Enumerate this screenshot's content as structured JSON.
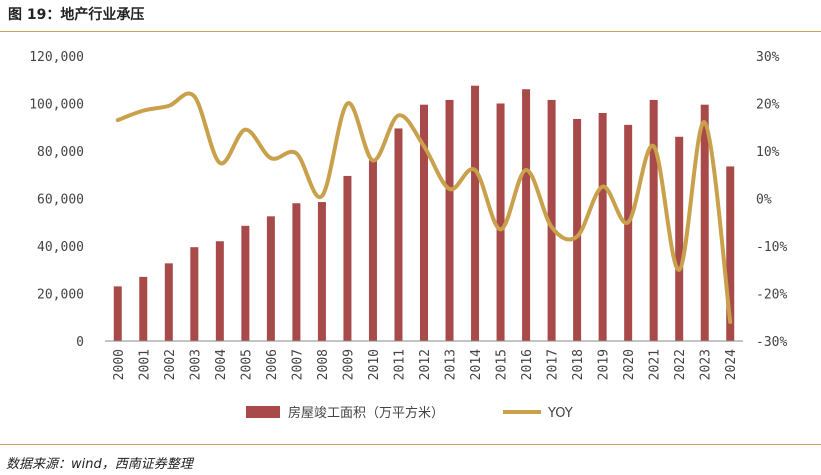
{
  "header": {
    "title": "图 19：地产行业承压"
  },
  "footer": {
    "source": "数据来源：wind，西南证券整理"
  },
  "chart_data": {
    "type": "bar+line",
    "categories": [
      "2000",
      "2001",
      "2002",
      "2003",
      "2004",
      "2005",
      "2006",
      "2007",
      "2008",
      "2009",
      "2010",
      "2011",
      "2012",
      "2013",
      "2014",
      "2015",
      "2016",
      "2017",
      "2018",
      "2019",
      "2020",
      "2021",
      "2022",
      "2023",
      "2024"
    ],
    "series": [
      {
        "name": "房屋竣工面积（万平方米）",
        "type": "bar",
        "axis": "left",
        "color": "#a94a4a",
        "values": [
          23000,
          27000,
          32700,
          39500,
          42000,
          48500,
          52500,
          58000,
          58500,
          69500,
          76000,
          89500,
          99500,
          101500,
          107500,
          100000,
          106000,
          101500,
          93500,
          96000,
          91000,
          101500,
          86000,
          99500,
          73500
        ]
      },
      {
        "name": "YOY",
        "type": "line",
        "axis": "right",
        "color": "#c9a04c",
        "values": [
          16.5,
          18.5,
          19.5,
          21.5,
          7.5,
          14.5,
          8.5,
          9.5,
          0.5,
          20,
          8,
          17.5,
          11,
          2,
          6,
          -6.5,
          6,
          -6,
          -8,
          2.5,
          -5,
          11,
          -15,
          16,
          -26
        ]
      }
    ],
    "left_axis": {
      "min": 0,
      "max": 120000,
      "ticks": [
        "0",
        "20,000",
        "40,000",
        "60,000",
        "80,000",
        "100,000",
        "120,000"
      ]
    },
    "right_axis": {
      "min": -30,
      "max": 30,
      "ticks": [
        "-30%",
        "-20%",
        "-10%",
        "0%",
        "10%",
        "20%",
        "30%"
      ]
    },
    "legend": {
      "position": "bottom",
      "items": [
        "房屋竣工面积（万平方米）",
        "YOY"
      ]
    }
  }
}
